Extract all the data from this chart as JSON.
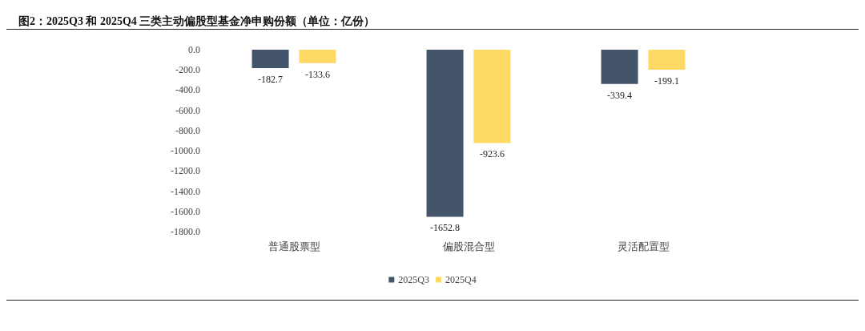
{
  "chart_data": {
    "type": "bar",
    "title": "图2：2025Q3 和 2025Q4 三类主动偏股型基金净申购份额（单位：亿份）",
    "categories": [
      "普通股票型",
      "偏股混合型",
      "灵活配置型"
    ],
    "series": [
      {
        "name": "2025Q3",
        "color": "#44546a",
        "values": [
          -182.7,
          -1652.8,
          -339.4
        ]
      },
      {
        "name": "2025Q4",
        "color": "#ffd966",
        "values": [
          -133.6,
          -923.6,
          -199.1
        ]
      }
    ],
    "ylim": [
      -1800,
      0
    ],
    "yticks": [
      {
        "value": 0,
        "label": "0.0"
      },
      {
        "value": -200,
        "label": "-200.0"
      },
      {
        "value": -400,
        "label": "-400.0"
      },
      {
        "value": -600,
        "label": "-600.0"
      },
      {
        "value": -800,
        "label": "-800.0"
      },
      {
        "value": -1000,
        "label": "-1000.0"
      },
      {
        "value": -1200,
        "label": "-1200.0"
      },
      {
        "value": -1400,
        "label": "-1400.0"
      },
      {
        "value": -1600,
        "label": "-1600.0"
      },
      {
        "value": -1800,
        "label": "-1800.0"
      }
    ],
    "data_labels": true,
    "grid": false,
    "legend": "bottom"
  }
}
